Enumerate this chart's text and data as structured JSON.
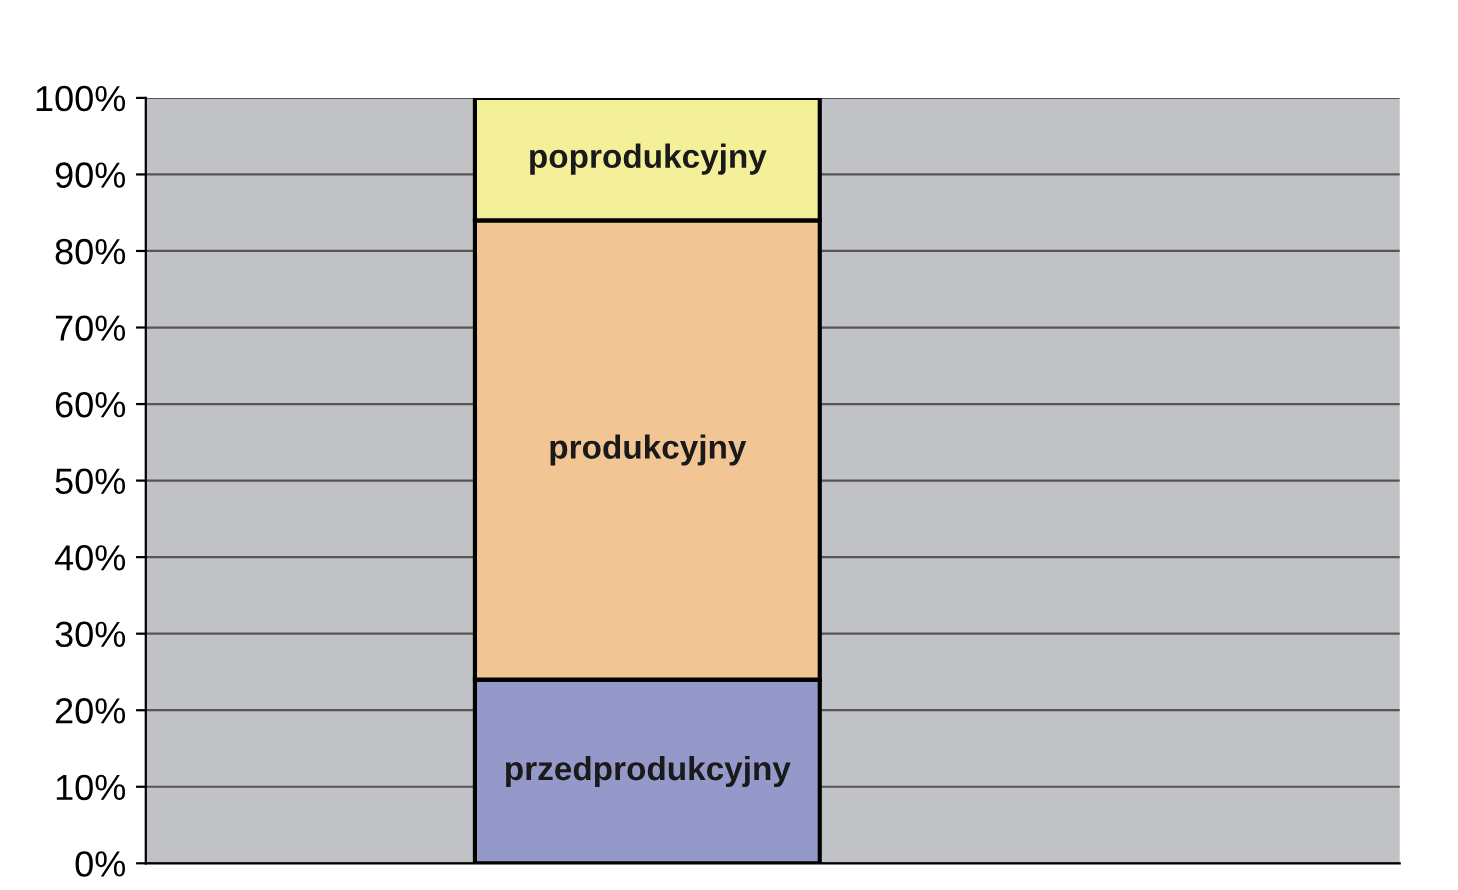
{
  "chart_data": {
    "type": "bar",
    "stacked": true,
    "categories": [
      null
    ],
    "series": [
      {
        "name": "przedprodukcyjny",
        "color": "#9599c9",
        "values": [
          24
        ]
      },
      {
        "name": "produkcyjny",
        "color": "#f2c595",
        "values": [
          60
        ]
      },
      {
        "name": "poprodukcyjny",
        "color": "#f4f09a",
        "values": [
          16
        ]
      }
    ],
    "ylim": [
      0,
      100
    ],
    "yticks": [
      {
        "value": 0,
        "label": "0%"
      },
      {
        "value": 10,
        "label": "10%"
      },
      {
        "value": 20,
        "label": "20%"
      },
      {
        "value": 30,
        "label": "30%"
      },
      {
        "value": 40,
        "label": "40%"
      },
      {
        "value": 50,
        "label": "50%"
      },
      {
        "value": 60,
        "label": "60%"
      },
      {
        "value": 70,
        "label": "70%"
      },
      {
        "value": 80,
        "label": "80%"
      },
      {
        "value": 90,
        "label": "90%"
      },
      {
        "value": 100,
        "label": "100%"
      }
    ],
    "grid": "y",
    "tick_labels": "y"
  }
}
